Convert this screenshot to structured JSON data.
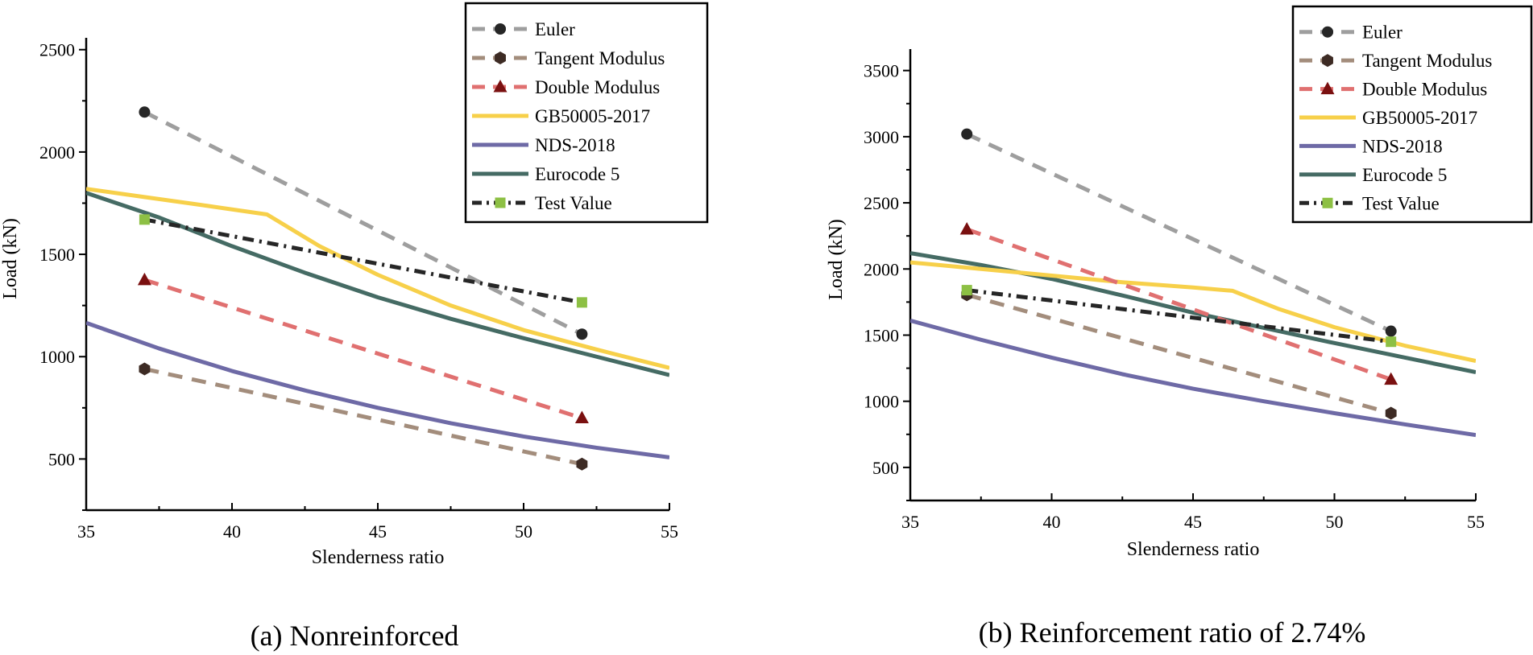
{
  "legend_entries": [
    {
      "key": "euler",
      "label": "Euler"
    },
    {
      "key": "tangent",
      "label": "Tangent Modulus"
    },
    {
      "key": "double",
      "label": "Double Modulus"
    },
    {
      "key": "gb",
      "label": "GB50005-2017"
    },
    {
      "key": "nds",
      "label": "NDS-2018"
    },
    {
      "key": "ec5",
      "label": "Eurocode 5"
    },
    {
      "key": "test",
      "label": "Test Value"
    }
  ],
  "styles": {
    "euler": {
      "color": "#9e9e9e",
      "dash": "dashed",
      "marker": "circle",
      "marker_color": "#262626"
    },
    "tangent": {
      "color": "#a38d7c",
      "dash": "dashed",
      "marker": "hexagon",
      "marker_color": "#3d2b24"
    },
    "double": {
      "color": "#e07070",
      "dash": "dashed",
      "marker": "triangle",
      "marker_color": "#7a1010"
    },
    "gb": {
      "color": "#f7d04a",
      "dash": "solid",
      "marker": "none",
      "marker_color": ""
    },
    "nds": {
      "color": "#6e6aa6",
      "dash": "solid",
      "marker": "none",
      "marker_color": ""
    },
    "ec5": {
      "color": "#456b64",
      "dash": "solid",
      "marker": "none",
      "marker_color": ""
    },
    "test": {
      "color": "#262626",
      "dash": "dashdot",
      "marker": "square",
      "marker_color": "#8dc044"
    }
  },
  "chart_data": [
    {
      "type": "line",
      "caption": "(a) Nonreinforced",
      "xlabel": "Slenderness ratio",
      "ylabel": "Load (kN)",
      "xlim": [
        35,
        55
      ],
      "ylim": [
        250,
        2550
      ],
      "xticks": [
        35,
        40,
        45,
        50,
        55
      ],
      "yticks": [
        500,
        1000,
        1500,
        2000,
        2500
      ],
      "grid": false,
      "legend_position": "top-right",
      "series": [
        {
          "key": "euler",
          "name": "Euler",
          "x": [
            37,
            52
          ],
          "y": [
            2195,
            1110
          ]
        },
        {
          "key": "tangent",
          "name": "Tangent Modulus",
          "x": [
            37,
            52
          ],
          "y": [
            940,
            475
          ]
        },
        {
          "key": "double",
          "name": "Double Modulus",
          "x": [
            37,
            52
          ],
          "y": [
            1375,
            700
          ]
        },
        {
          "key": "gb",
          "name": "GB50005-2017",
          "x": [
            35,
            37,
            39,
            41.2,
            43,
            45,
            47.5,
            50,
            52.5,
            55
          ],
          "y": [
            1820,
            1780,
            1740,
            1695,
            1540,
            1400,
            1250,
            1130,
            1035,
            945
          ]
        },
        {
          "key": "nds",
          "name": "NDS-2018",
          "x": [
            35,
            37.5,
            40,
            42.5,
            45,
            47.5,
            50,
            52.5,
            55
          ],
          "y": [
            1165,
            1040,
            930,
            835,
            750,
            675,
            610,
            555,
            508
          ]
        },
        {
          "key": "ec5",
          "name": "Eurocode 5",
          "x": [
            35,
            37.5,
            40,
            42.5,
            45,
            47.5,
            50,
            52.5,
            55
          ],
          "y": [
            1800,
            1680,
            1540,
            1410,
            1290,
            1185,
            1090,
            1000,
            910
          ]
        },
        {
          "key": "test",
          "name": "Test Value",
          "x": [
            37,
            52
          ],
          "y": [
            1670,
            1265
          ]
        }
      ]
    },
    {
      "type": "line",
      "caption": "(b) Reinforcement ratio of 2.74%",
      "xlabel": "Slenderness ratio",
      "ylabel": "Load (kN)",
      "xlim": [
        35,
        55
      ],
      "ylim": [
        250,
        3650
      ],
      "xticks": [
        35,
        40,
        45,
        50,
        55
      ],
      "yticks": [
        500,
        1000,
        1500,
        2000,
        2500,
        3000,
        3500
      ],
      "grid": false,
      "legend_position": "top-right",
      "series": [
        {
          "key": "euler",
          "name": "Euler",
          "x": [
            37,
            52
          ],
          "y": [
            3020,
            1530
          ]
        },
        {
          "key": "tangent",
          "name": "Tangent Modulus",
          "x": [
            37,
            52
          ],
          "y": [
            1805,
            910
          ]
        },
        {
          "key": "double",
          "name": "Double Modulus",
          "x": [
            37,
            52
          ],
          "y": [
            2300,
            1165
          ]
        },
        {
          "key": "gb",
          "name": "GB50005-2017",
          "x": [
            35,
            37.5,
            40,
            42.5,
            45,
            46.4,
            48,
            50,
            52.5,
            55
          ],
          "y": [
            2050,
            2000,
            1950,
            1900,
            1860,
            1835,
            1700,
            1560,
            1420,
            1305
          ]
        },
        {
          "key": "nds",
          "name": "NDS-2018",
          "x": [
            35,
            37.5,
            40,
            42.5,
            45,
            47.5,
            50,
            52.5,
            55
          ],
          "y": [
            1610,
            1465,
            1330,
            1205,
            1095,
            1000,
            910,
            825,
            745
          ]
        },
        {
          "key": "ec5",
          "name": "Eurocode 5",
          "x": [
            35,
            37.5,
            40,
            42.5,
            45,
            47.5,
            50,
            52.5,
            55
          ],
          "y": [
            2120,
            2030,
            1925,
            1800,
            1670,
            1555,
            1440,
            1330,
            1220
          ]
        },
        {
          "key": "test",
          "name": "Test Value",
          "x": [
            37,
            52
          ],
          "y": [
            1840,
            1450
          ]
        }
      ]
    }
  ]
}
